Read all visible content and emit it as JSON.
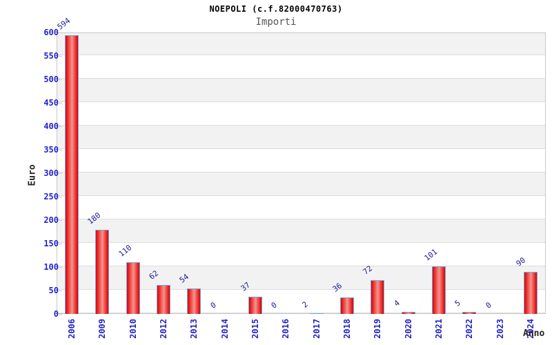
{
  "page": {
    "background": "#ffffff"
  },
  "chart_data": {
    "type": "bar",
    "title": "NOEPOLI (c.f.82000470763)",
    "subtitle": "Importi",
    "xlabel": "Anno",
    "ylabel": "Euro",
    "categories": [
      "2006",
      "2009",
      "2010",
      "2012",
      "2013",
      "2014",
      "2015",
      "2016",
      "2017",
      "2018",
      "2019",
      "2020",
      "2021",
      "2022",
      "2023",
      "2024"
    ],
    "values": [
      594,
      180,
      110,
      62,
      54,
      0,
      37,
      0,
      2,
      36,
      72,
      4,
      101,
      5,
      0,
      90
    ],
    "ylim": [
      0,
      600
    ],
    "ytick_step": 50,
    "grid": "horizontal-bands",
    "legend": "none",
    "colors": {
      "bar_fill": "#ee1c1c",
      "bar_fill_highlight": "#f0968e",
      "bar_border": "#74aade",
      "axis_tick_label": "#2323cc",
      "value_label": "#1c1c96",
      "band_fill": "#f2f2f2",
      "grid_line": "#dcdcdc",
      "plot_border": "#c8c8c8",
      "title_color": "#000000",
      "subtitle_color": "#555555",
      "axis_title_color": "#222222"
    }
  }
}
